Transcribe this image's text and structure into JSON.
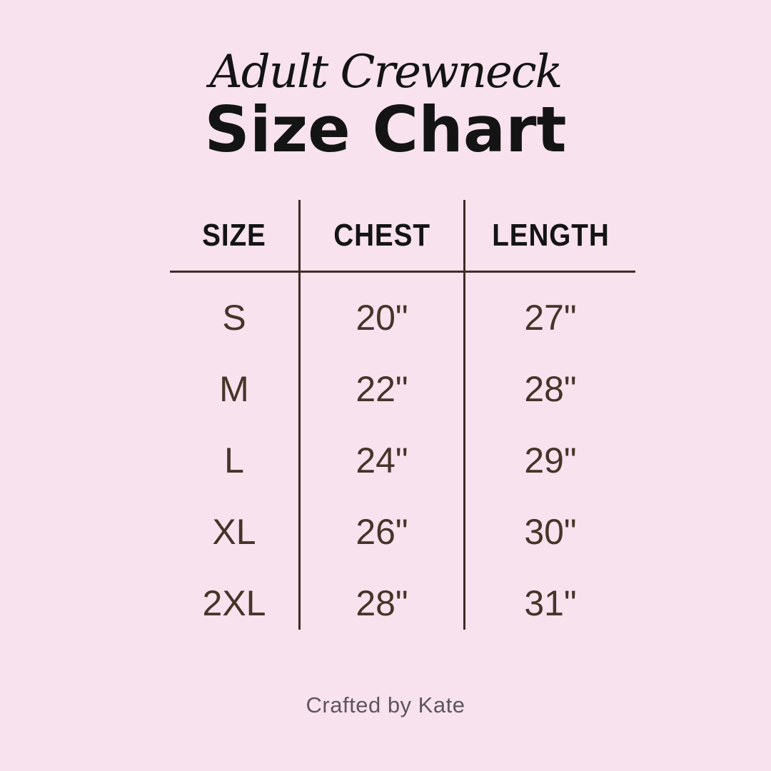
{
  "header": {
    "collection_script": "Adult Crewneck",
    "title": "Size Chart"
  },
  "footer": {
    "credit": "Crafted by Kate"
  },
  "chart_data": {
    "type": "table",
    "title": "Adult Crewneck Size Chart",
    "columns": [
      "SIZE",
      "CHEST",
      "LENGTH"
    ],
    "rows": [
      [
        "S",
        "20\"",
        "27\""
      ],
      [
        "M",
        "22\"",
        "28\""
      ],
      [
        "L",
        "24\"",
        "29\""
      ],
      [
        "XL",
        "26\"",
        "30\""
      ],
      [
        "2XL",
        "28\"",
        "31\""
      ]
    ]
  },
  "colors": {
    "background": "#F7E2EE",
    "table-line": "#3E2C26",
    "header-text": "#141414",
    "data-text": "#463429",
    "footer-text": "#5E5560"
  }
}
